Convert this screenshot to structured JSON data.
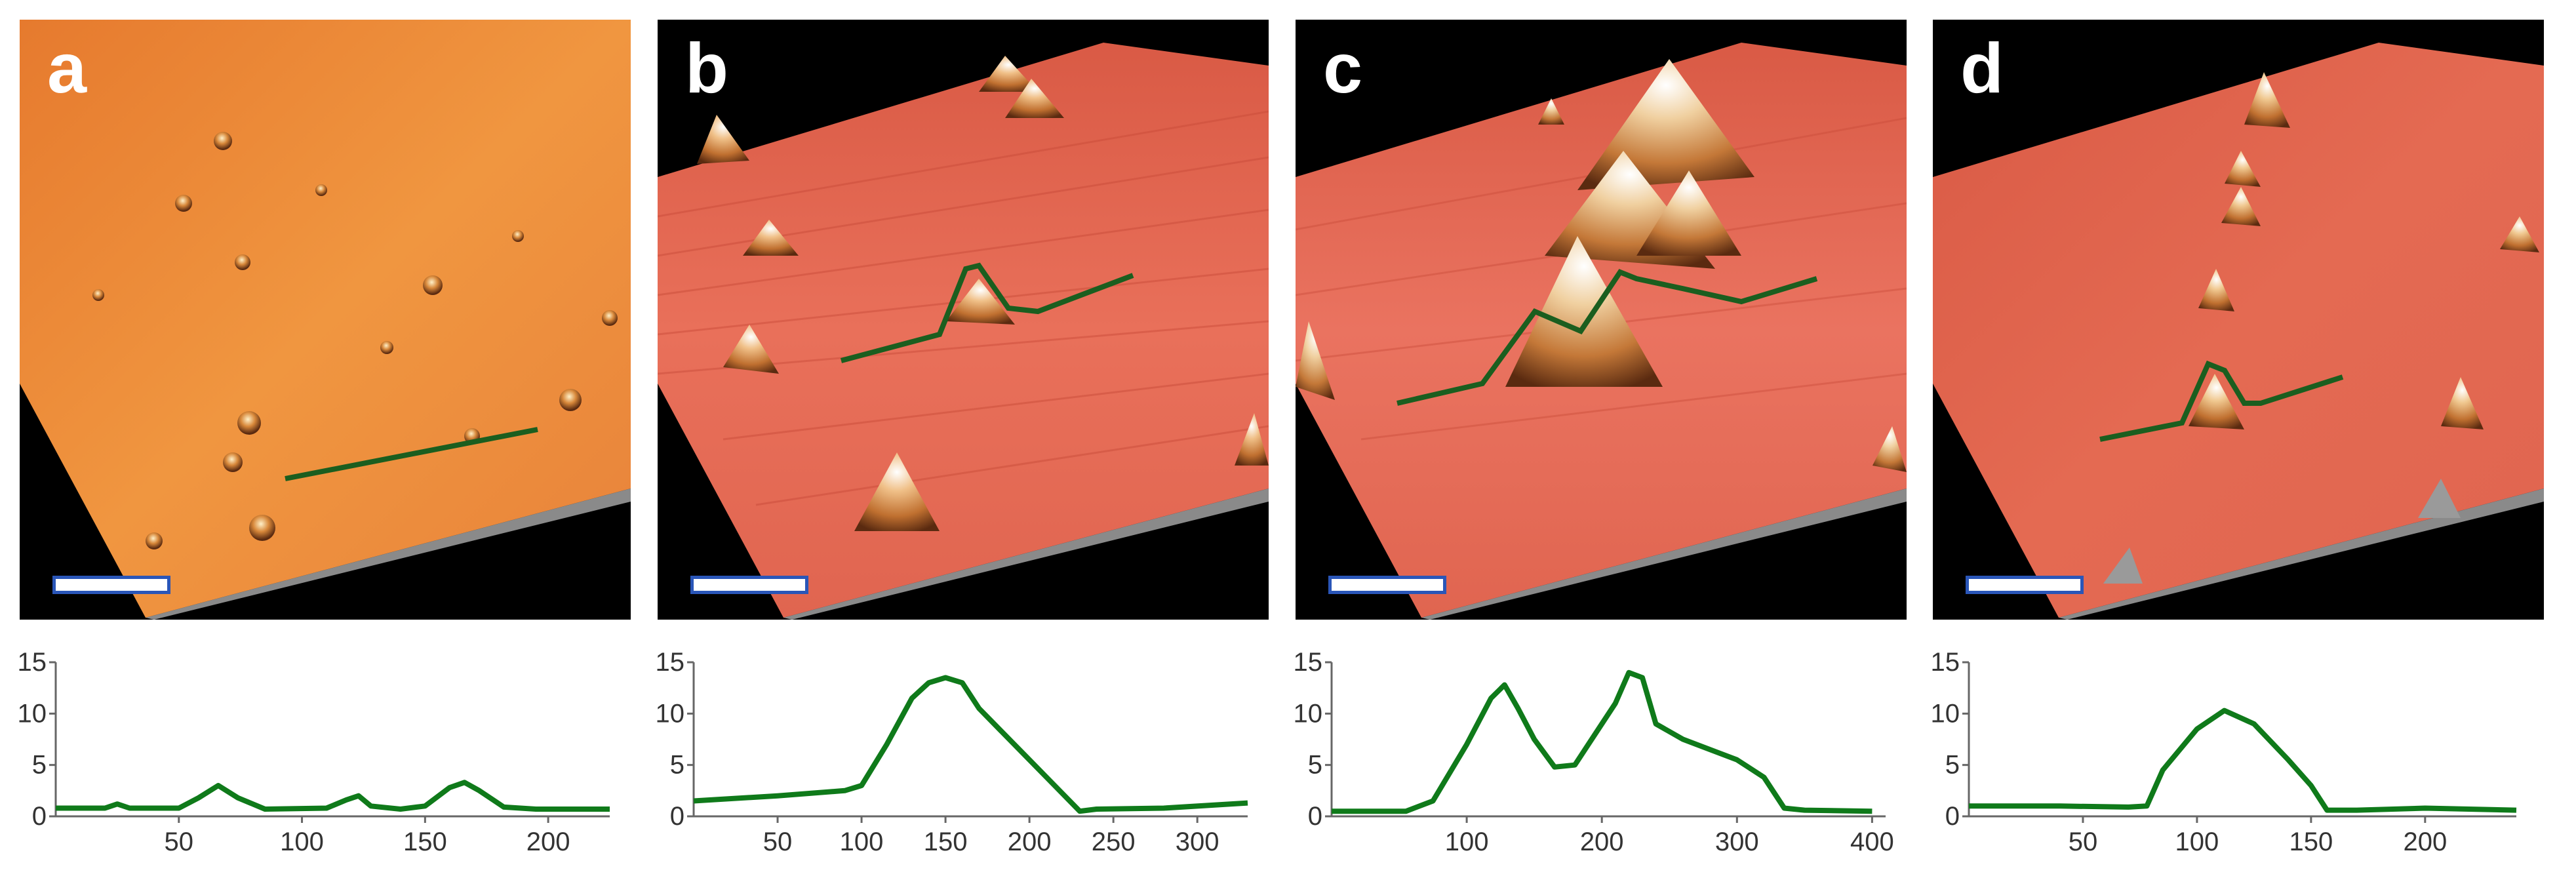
{
  "figure": {
    "panels": [
      {
        "label": "a"
      },
      {
        "label": "b"
      },
      {
        "label": "c"
      },
      {
        "label": "d"
      }
    ]
  },
  "colors": {
    "surface_a": "#e8823a",
    "surface_bcd": "#e35f48",
    "profile_line": "#0f7a1a",
    "scan_line": "#1b5e1f",
    "scale_bar_fill": "#ffffff",
    "scale_bar_border": "#2a56b8"
  },
  "chart_data": [
    {
      "type": "line",
      "panel": "a",
      "ylim": [
        0,
        15
      ],
      "xlim": [
        0,
        225
      ],
      "yticks": [
        "0",
        "5",
        "10",
        "15"
      ],
      "xticks": [
        "50",
        "100",
        "150",
        "200"
      ],
      "xtick_values": [
        50,
        100,
        150,
        200
      ],
      "x": [
        0,
        20,
        25,
        30,
        50,
        58,
        66,
        74,
        85,
        110,
        118,
        123,
        128,
        140,
        150,
        160,
        166,
        172,
        182,
        195,
        225
      ],
      "y": [
        0.8,
        0.8,
        1.2,
        0.8,
        0.8,
        1.8,
        3.0,
        1.8,
        0.7,
        0.8,
        1.6,
        2.0,
        1.0,
        0.7,
        1.0,
        2.8,
        3.3,
        2.5,
        0.9,
        0.7,
        0.7
      ]
    },
    {
      "type": "line",
      "panel": "b",
      "ylim": [
        0,
        15
      ],
      "xlim": [
        0,
        330
      ],
      "yticks": [
        "0",
        "5",
        "10",
        "15"
      ],
      "xticks": [
        "50",
        "100",
        "150",
        "200",
        "250",
        "300"
      ],
      "xtick_values": [
        50,
        100,
        150,
        200,
        250,
        300
      ],
      "x": [
        0,
        50,
        90,
        100,
        115,
        130,
        140,
        150,
        160,
        170,
        185,
        200,
        215,
        230,
        240,
        280,
        330
      ],
      "y": [
        1.5,
        2.0,
        2.5,
        3.0,
        7.0,
        11.5,
        13.0,
        13.5,
        13.0,
        10.5,
        8.0,
        5.5,
        3.0,
        0.5,
        0.7,
        0.8,
        1.3
      ]
    },
    {
      "type": "line",
      "panel": "c",
      "ylim": [
        0,
        15
      ],
      "xlim": [
        0,
        410
      ],
      "yticks": [
        "0",
        "5",
        "10",
        "15"
      ],
      "xticks": [
        "100",
        "200",
        "300",
        "400"
      ],
      "xtick_values": [
        100,
        200,
        300,
        400
      ],
      "x": [
        0,
        55,
        75,
        100,
        118,
        128,
        138,
        150,
        165,
        180,
        200,
        210,
        220,
        230,
        240,
        260,
        300,
        320,
        335,
        350,
        400
      ],
      "y": [
        0.5,
        0.5,
        1.5,
        7.0,
        11.5,
        12.8,
        10.5,
        7.5,
        4.8,
        5.0,
        9.0,
        11.0,
        14.0,
        13.5,
        9.0,
        7.5,
        5.5,
        3.8,
        0.8,
        0.6,
        0.5
      ]
    },
    {
      "type": "line",
      "panel": "d",
      "ylim": [
        0,
        15
      ],
      "xlim": [
        0,
        240
      ],
      "yticks": [
        "0",
        "5",
        "10",
        "15"
      ],
      "xticks": [
        "50",
        "100",
        "150",
        "200"
      ],
      "xtick_values": [
        50,
        100,
        150,
        200
      ],
      "x": [
        0,
        40,
        70,
        78,
        85,
        100,
        112,
        125,
        140,
        150,
        157,
        170,
        200,
        240
      ],
      "y": [
        1.0,
        1.0,
        0.9,
        1.0,
        4.5,
        8.5,
        10.3,
        9.0,
        5.5,
        3.0,
        0.6,
        0.6,
        0.8,
        0.6
      ]
    }
  ]
}
